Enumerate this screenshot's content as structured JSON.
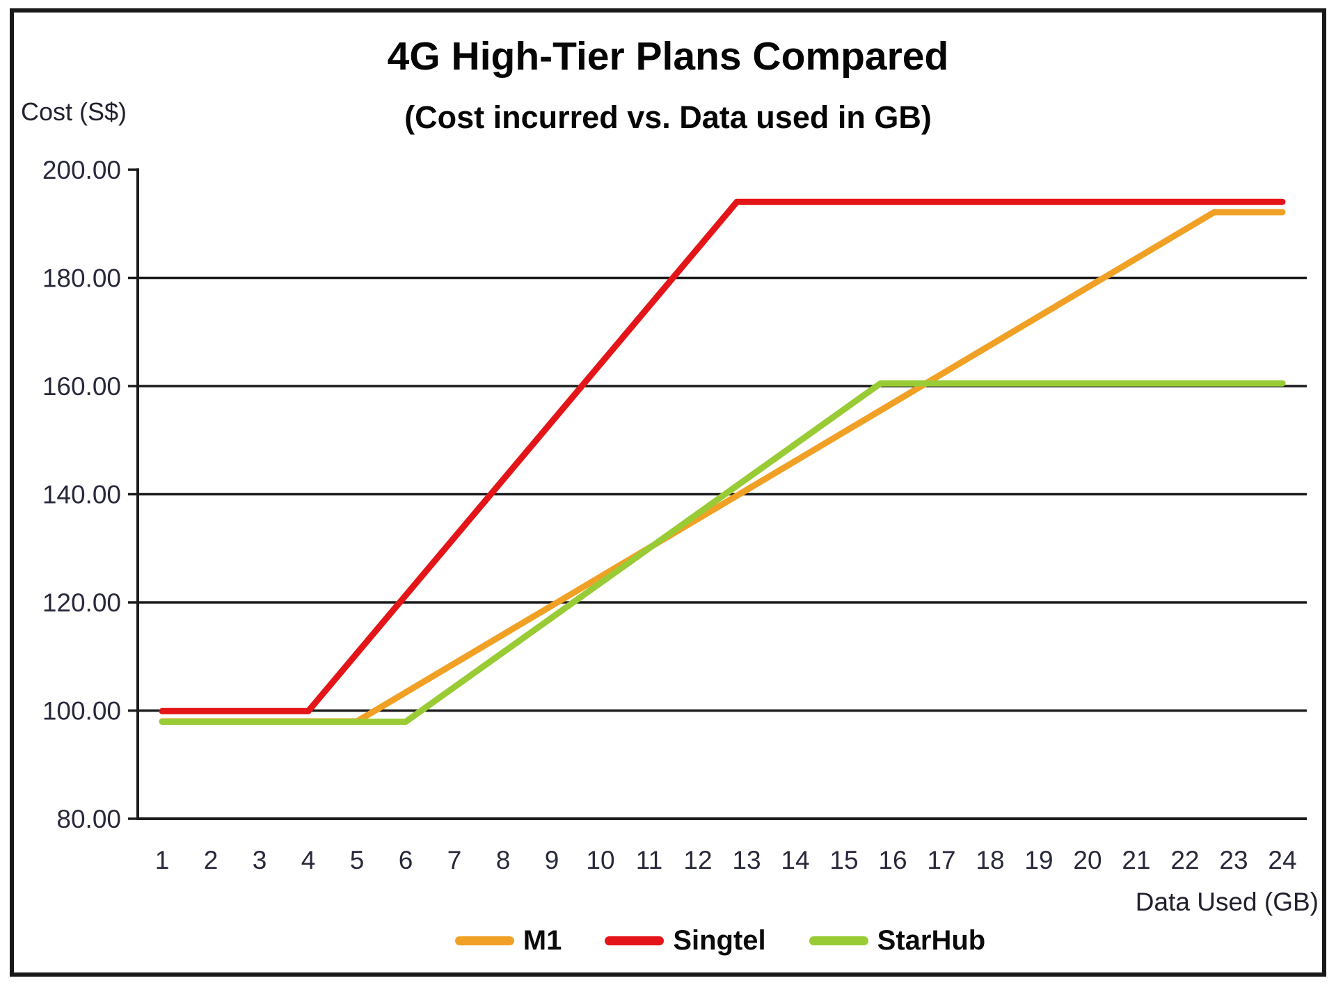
{
  "chart_data": {
    "type": "line",
    "title": "4G High-Tier Plans Compared",
    "subtitle": "(Cost incurred vs. Data used in GB)",
    "ylabel": "Cost (S$)",
    "xlabel": "Data Used (GB)",
    "x_ticks": [
      1,
      2,
      3,
      4,
      5,
      6,
      7,
      8,
      9,
      10,
      11,
      12,
      13,
      14,
      15,
      16,
      17,
      18,
      19,
      20,
      21,
      22,
      23,
      24
    ],
    "y_ticks": [
      200,
      180,
      160,
      140,
      120,
      100,
      80
    ],
    "y_tick_labels": [
      "200.00",
      "180.00",
      "160.00",
      "140.00",
      "120.00",
      "100.00",
      "80.00"
    ],
    "ylim": [
      80,
      200
    ],
    "x_categories": 24,
    "grid": "horizontal-only",
    "legend_position": "bottom-center",
    "axis_color": "#1c1c1c",
    "tick_label_color": "#28283c",
    "series": [
      {
        "name": "M1",
        "color": "#f0a125",
        "points": [
          [
            1,
            98.0
          ],
          [
            5,
            98.0
          ],
          [
            22.6,
            192.16
          ],
          [
            24,
            192.16
          ]
        ]
      },
      {
        "name": "Singtel",
        "color": "#e41518",
        "points": [
          [
            1,
            99.9
          ],
          [
            4,
            99.9
          ],
          [
            12.8,
            194.06
          ],
          [
            24,
            194.06
          ]
        ]
      },
      {
        "name": "StarHub",
        "color": "#99cb35",
        "points": [
          [
            1,
            97.93
          ],
          [
            6,
            97.93
          ],
          [
            15.75,
            160.5
          ],
          [
            24,
            160.5
          ]
        ]
      }
    ]
  }
}
